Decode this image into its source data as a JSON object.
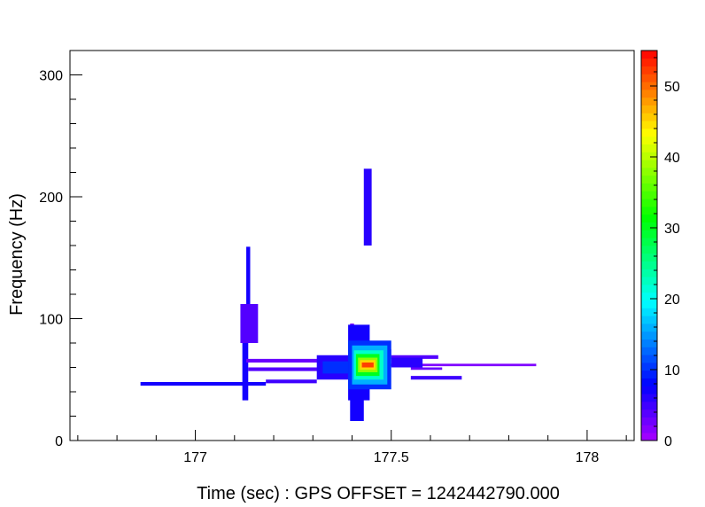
{
  "chart_data": {
    "type": "heatmap",
    "title": "",
    "xlabel": "Time (sec) : GPS OFFSET = 1242442790.000",
    "ylabel": "Frequency (Hz)",
    "xlim": [
      176.68,
      178.12
    ],
    "ylim": [
      0,
      320
    ],
    "x_ticks": [
      {
        "value": 177,
        "label": "177"
      },
      {
        "value": 177.5,
        "label": "177.5"
      },
      {
        "value": 178,
        "label": "178"
      }
    ],
    "y_ticks": [
      {
        "value": 0,
        "label": "0"
      },
      {
        "value": 100,
        "label": "100"
      },
      {
        "value": 200,
        "label": "200"
      },
      {
        "value": 300,
        "label": "300"
      }
    ],
    "colorbar": {
      "range": [
        0,
        55
      ],
      "ticks": [
        {
          "value": 0,
          "label": "0"
        },
        {
          "value": 10,
          "label": "10"
        },
        {
          "value": 20,
          "label": "20"
        },
        {
          "value": 30,
          "label": "30"
        },
        {
          "value": 40,
          "label": "40"
        },
        {
          "value": 50,
          "label": "50"
        }
      ]
    },
    "tiles": [
      {
        "t0": 176.86,
        "t1": 177.18,
        "f0": 45,
        "f1": 48,
        "v": 7
      },
      {
        "t0": 177.12,
        "t1": 177.135,
        "f0": 33,
        "f1": 100,
        "v": 7
      },
      {
        "t0": 177.13,
        "t1": 177.14,
        "f0": 95,
        "f1": 159,
        "v": 7
      },
      {
        "t0": 177.115,
        "t1": 177.16,
        "f0": 80,
        "f1": 112,
        "v": 4
      },
      {
        "t0": 177.18,
        "t1": 177.31,
        "f0": 47,
        "f1": 50,
        "v": 5
      },
      {
        "t0": 177.13,
        "t1": 177.4,
        "f0": 64,
        "f1": 67,
        "v": 3
      },
      {
        "t0": 177.135,
        "t1": 177.36,
        "f0": 57,
        "f1": 60,
        "v": 4
      },
      {
        "t0": 177.42,
        "t1": 177.87,
        "f0": 61,
        "f1": 63,
        "v": 2
      },
      {
        "t0": 177.55,
        "t1": 177.68,
        "f0": 50,
        "f1": 53,
        "v": 5
      },
      {
        "t0": 177.55,
        "t1": 177.63,
        "f0": 58,
        "f1": 60,
        "v": 3
      },
      {
        "t0": 177.5,
        "t1": 177.62,
        "f0": 67,
        "f1": 70,
        "v": 4
      },
      {
        "t0": 177.5,
        "t1": 177.58,
        "f0": 60,
        "f1": 68,
        "v": 6
      },
      {
        "t0": 177.43,
        "t1": 177.45,
        "f0": 160,
        "f1": 223,
        "v": 6
      },
      {
        "t0": 177.395,
        "t1": 177.405,
        "f0": 70,
        "f1": 96,
        "v": 2
      },
      {
        "t0": 177.395,
        "t1": 177.43,
        "f0": 16,
        "f1": 36,
        "v": 7
      },
      {
        "t0": 177.45,
        "t1": 177.5,
        "f0": 68,
        "f1": 75,
        "v": 3
      },
      {
        "t0": 177.31,
        "t1": 177.41,
        "f0": 50,
        "f1": 70,
        "v": 6
      },
      {
        "t0": 177.325,
        "t1": 177.4,
        "f0": 55,
        "f1": 65,
        "v": 10
      },
      {
        "t0": 177.39,
        "t1": 177.445,
        "f0": 33,
        "f1": 95,
        "v": 7
      },
      {
        "t0": 177.39,
        "t1": 177.5,
        "f0": 42,
        "f1": 82,
        "v": 10
      },
      {
        "t0": 177.4,
        "t1": 177.49,
        "f0": 46,
        "f1": 78,
        "v": 16
      },
      {
        "t0": 177.405,
        "t1": 177.48,
        "f0": 50,
        "f1": 74,
        "v": 22
      },
      {
        "t0": 177.41,
        "t1": 177.47,
        "f0": 53,
        "f1": 71,
        "v": 30
      },
      {
        "t0": 177.415,
        "t1": 177.465,
        "f0": 56,
        "f1": 68,
        "v": 38
      },
      {
        "t0": 177.42,
        "t1": 177.46,
        "f0": 58,
        "f1": 66,
        "v": 45
      },
      {
        "t0": 177.425,
        "t1": 177.455,
        "f0": 60,
        "f1": 64,
        "v": 52
      }
    ]
  }
}
